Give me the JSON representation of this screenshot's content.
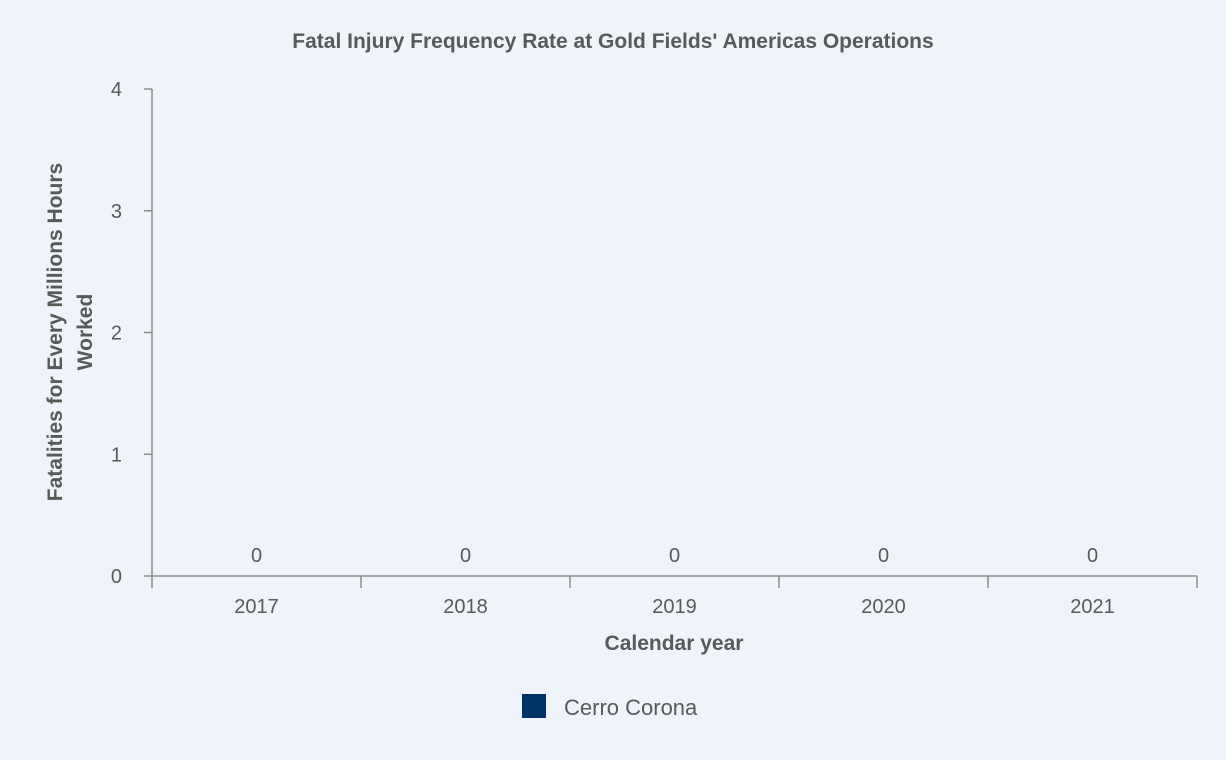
{
  "chart_data": {
    "type": "bar",
    "title": "Fatal Injury Frequency Rate at Gold Fields' Americas Operations",
    "xlabel": "Calendar year",
    "ylabel_lines": [
      "Fatalities for Every Millions Hours",
      "Worked"
    ],
    "categories": [
      "2017",
      "2018",
      "2019",
      "2020",
      "2021"
    ],
    "series": [
      {
        "name": "Cerro Corona",
        "values": [
          0,
          0,
          0,
          0,
          0
        ],
        "color": "#003366"
      }
    ],
    "ylim": [
      0,
      4
    ],
    "yticks": [
      "0",
      "1",
      "2",
      "3",
      "4"
    ],
    "data_labels": [
      "0",
      "0",
      "0",
      "0",
      "0"
    ],
    "grid": false,
    "legend": "bottom-center"
  }
}
